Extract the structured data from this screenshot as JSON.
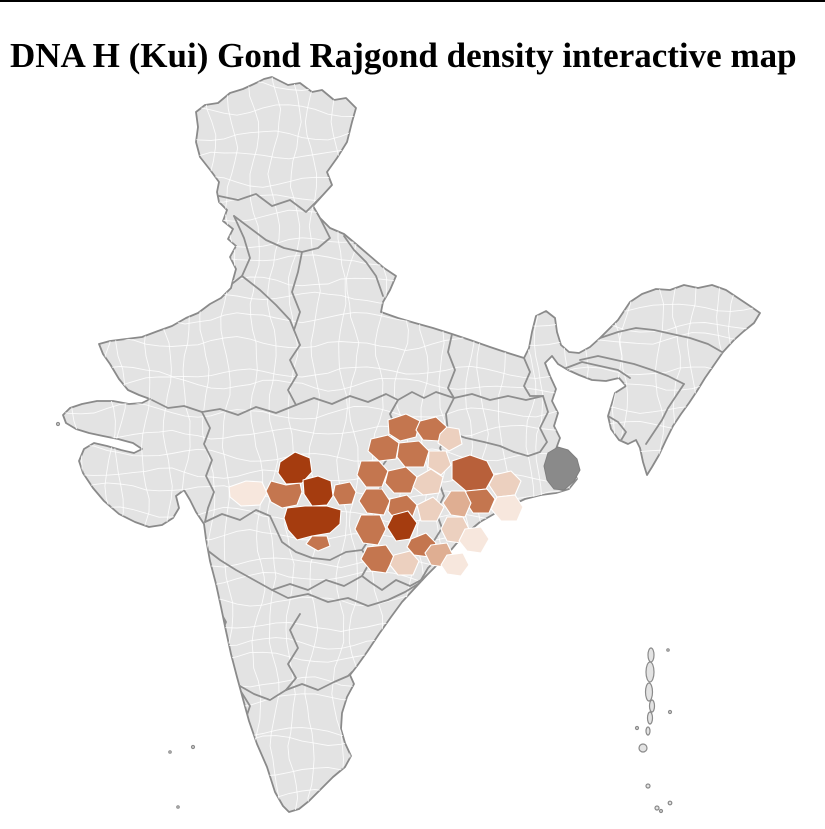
{
  "page": {
    "title": "DNA H (Kui) Gond Rajgond density interactive map",
    "background": "#ffffff",
    "top_rule_color": "#000000"
  },
  "map": {
    "land_fill": "#e3e3e3",
    "outline_color": "#8a8a8a",
    "state_border_color": "#8e8e8e",
    "district_border_color": "#ffffff",
    "no_data_region_fill": "#8a8a8a",
    "density_levels": {
      "level5_highest": "#a53c0f",
      "level4_high": "#b8603a",
      "level3_medium": "#c4764f",
      "level2_low": "#dfae92",
      "level1_lower": "#ecd0bf",
      "level0_lowest": "#f7e7dd"
    }
  }
}
